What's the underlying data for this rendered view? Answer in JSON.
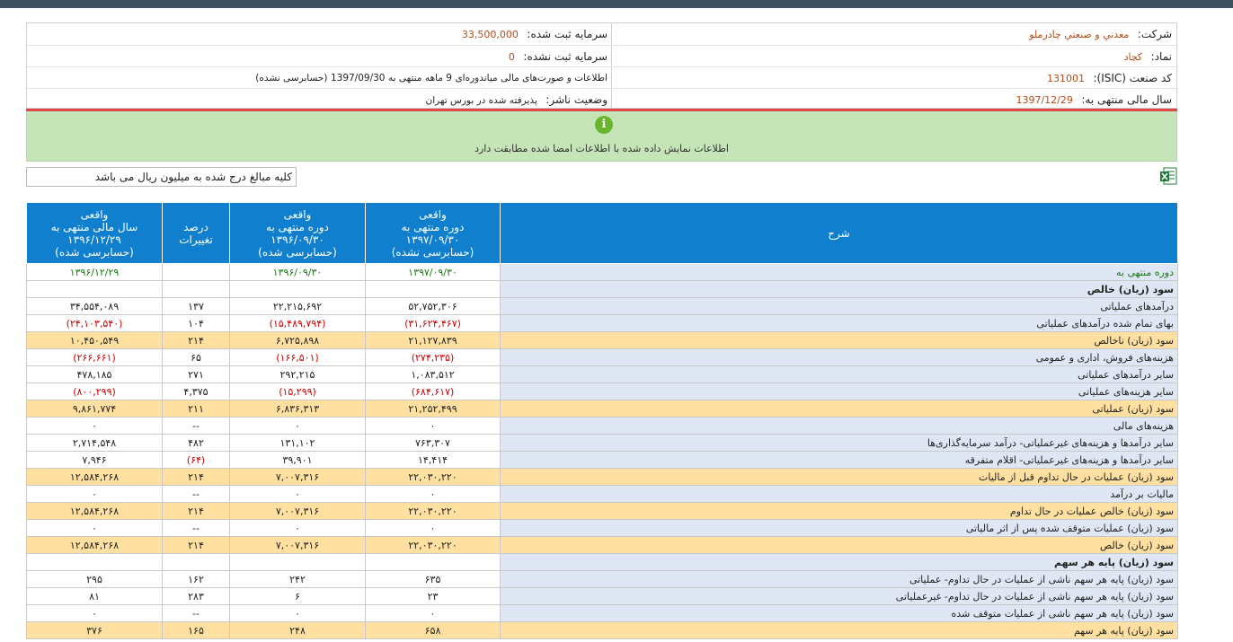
{
  "header": {
    "company_label": "شرکت:",
    "company_value": "معدني و صنعتي چادرملو",
    "registered_capital_label": "سرمایه ثبت شده:",
    "registered_capital_value": "33,500,000",
    "symbol_label": "نماد:",
    "symbol_value": "کچاد",
    "unregistered_capital_label": "سرمایه ثبت نشده:",
    "unregistered_capital_value": "0",
    "isic_label": "کد صنعت (ISIC):",
    "isic_value": "131001",
    "report_part1": "اطلاعات و صورت‌های مالی میاندوره‌ای",
    "report_months": "9 ماهه",
    "report_part2": "منتهی به",
    "report_date": "1397/09/30",
    "report_part3": "(حسابرسی نشده)",
    "fiscal_year_label": "سال مالی منتهی به:",
    "fiscal_year_value": "1397/12/29",
    "publisher_status_label": "وضعیت ناشر:",
    "publisher_status_value": "پذیرفته شده در بورس تهران"
  },
  "alert": {
    "icon": "info-icon",
    "text": "اطلاعات نمایش داده شده با اطلاعات امضا شده مطابقت دارد"
  },
  "unit_note": "کلیه مبالغ درج شده به میلیون ریال می باشد",
  "table": {
    "headers": {
      "description": "شرح",
      "col1": [
        "واقعی",
        "دوره منتهی به",
        "۱۳۹۷/۰۹/۳۰",
        "(حسابرسی نشده)"
      ],
      "col2": [
        "واقعی",
        "دوره منتهی به",
        "۱۳۹۶/۰۹/۳۰",
        "(حسابرسی شده)"
      ],
      "col3": [
        "درصد",
        "تغییرات"
      ],
      "col4": [
        "واقعی",
        "سال مالی منتهی به",
        "۱۳۹۶/۱۲/۲۹",
        "(حسابرسی شده)"
      ]
    },
    "rows": [
      {
        "desc": "دوره منتهی به",
        "c1": "۱۳۹۷/۰۹/۳۰",
        "c2": "۱۳۹۶/۰۹/۳۰",
        "c3": "",
        "c4": "۱۳۹۶/۱۲/۲۹"
      },
      {
        "desc": "سود (زيان) خالص",
        "c1": "",
        "c2": "",
        "c3": "",
        "c4": ""
      },
      {
        "desc": "درآمدهای عملیاتی",
        "c1": "۵۲,۷۵۲,۳۰۶",
        "c2": "۲۲,۲۱۵,۶۹۲",
        "c3": "۱۳۷",
        "c4": "۳۴,۵۵۴,۰۸۹"
      },
      {
        "desc": "بهای تمام شده درآمدهای عملیاتی",
        "c1": "(۳۱,۶۲۴,۴۶۷)",
        "c2": "(۱۵,۴۸۹,۷۹۴)",
        "c3": "۱۰۴",
        "c4": "(۲۴,۱۰۳,۵۴۰)"
      },
      {
        "desc": "سود (زيان) ناخالص",
        "c1": "۲۱,۱۲۷,۸۳۹",
        "c2": "۶,۷۲۵,۸۹۸",
        "c3": "۲۱۴",
        "c4": "۱۰,۴۵۰,۵۴۹"
      },
      {
        "desc": "هزینه‌های فروش، اداری و عمومی",
        "c1": "(۲۷۴,۲۳۵)",
        "c2": "(۱۶۶,۵۰۱)",
        "c3": "۶۵",
        "c4": "(۲۶۶,۶۶۱)"
      },
      {
        "desc": "سایر درآمدهای عملیاتی",
        "c1": "۱,۰۸۳,۵۱۲",
        "c2": "۲۹۲,۲۱۵",
        "c3": "۲۷۱",
        "c4": "۴۷۸,۱۸۵"
      },
      {
        "desc": "سایر هزینه‌های عملیاتی",
        "c1": "(۶۸۴,۶۱۷)",
        "c2": "(۱۵,۲۹۹)",
        "c3": "۴,۳۷۵",
        "c4": "(۸۰۰,۲۹۹)"
      },
      {
        "desc": "سود (زيان) عملیاتی",
        "c1": "۲۱,۲۵۲,۴۹۹",
        "c2": "۶,۸۳۶,۳۱۳",
        "c3": "۲۱۱",
        "c4": "۹,۸۶۱,۷۷۴"
      },
      {
        "desc": "هزینه‌های مالی",
        "c1": "۰",
        "c2": "۰",
        "c3": "--",
        "c4": "۰"
      },
      {
        "desc": "سایر درآمدها و هزینه‌های غیرعملیاتی- درآمد سرمایه‌گذاری‌ها",
        "c1": "۷۶۳,۳۰۷",
        "c2": "۱۳۱,۱۰۲",
        "c3": "۴۸۲",
        "c4": "۲,۷۱۴,۵۴۸"
      },
      {
        "desc": "سایر درآمدها و هزینه‌های غیرعملیاتی- اقلام متفرقه",
        "c1": "۱۴,۴۱۴",
        "c2": "۳۹,۹۰۱",
        "c3": "(۶۴)",
        "c4": "۷,۹۴۶"
      },
      {
        "desc": "سود (زيان) عملیات در حال تداوم قبل از مالیات",
        "c1": "۲۲,۰۳۰,۲۲۰",
        "c2": "۷,۰۰۷,۳۱۶",
        "c3": "۲۱۴",
        "c4": "۱۲,۵۸۴,۲۶۸"
      },
      {
        "desc": "مالیات بر درآمد",
        "c1": "۰",
        "c2": "۰",
        "c3": "--",
        "c4": "۰"
      },
      {
        "desc": "سود (زيان) خالص عملیات در حال تداوم",
        "c1": "۲۲,۰۳۰,۲۲۰",
        "c2": "۷,۰۰۷,۳۱۶",
        "c3": "۲۱۴",
        "c4": "۱۲,۵۸۴,۲۶۸"
      },
      {
        "desc": "سود (زيان) عملیات متوقف شده پس از اثر مالیاتی",
        "c1": "۰",
        "c2": "۰",
        "c3": "--",
        "c4": "۰"
      },
      {
        "desc": "سود (زيان) خالص",
        "c1": "۲۲,۰۳۰,۲۲۰",
        "c2": "۷,۰۰۷,۳۱۶",
        "c3": "۲۱۴",
        "c4": "۱۲,۵۸۴,۲۶۸"
      },
      {
        "desc": "سود (زيان) پایه هر سهم",
        "c1": "",
        "c2": "",
        "c3": "",
        "c4": ""
      },
      {
        "desc": "سود (زيان) پایه هر سهم ناشی از عملیات در حال تداوم- عملیاتی",
        "c1": "۶۳۵",
        "c2": "۲۴۲",
        "c3": "۱۶۲",
        "c4": "۲۹۵"
      },
      {
        "desc": "سود (زيان) پایه هر سهم ناشی از عملیات در حال تداوم- غیرعملیاتی",
        "c1": "۲۳",
        "c2": "۶",
        "c3": "۲۸۳",
        "c4": "۸۱"
      },
      {
        "desc": "سود (زيان) پایه هر سهم ناشی از عملیات متوقف شده",
        "c1": "۰",
        "c2": "۰",
        "c3": "--",
        "c4": "۰"
      },
      {
        "desc": "سود (زيان) پایه هر سهم",
        "c1": "۶۵۸",
        "c2": "۲۴۸",
        "c3": "۱۶۵",
        "c4": "۳۷۶"
      }
    ]
  },
  "colors": {
    "topbar": "#3d5360",
    "header_blue": "#0f7fce",
    "alert_green": "#c5e4b8",
    "highlight_row": "#ffe0a0",
    "desc_bg": "#dfe7f5",
    "negative": "#d10000",
    "value_orange": "#b44d1b",
    "green_text": "#1a7a14"
  }
}
